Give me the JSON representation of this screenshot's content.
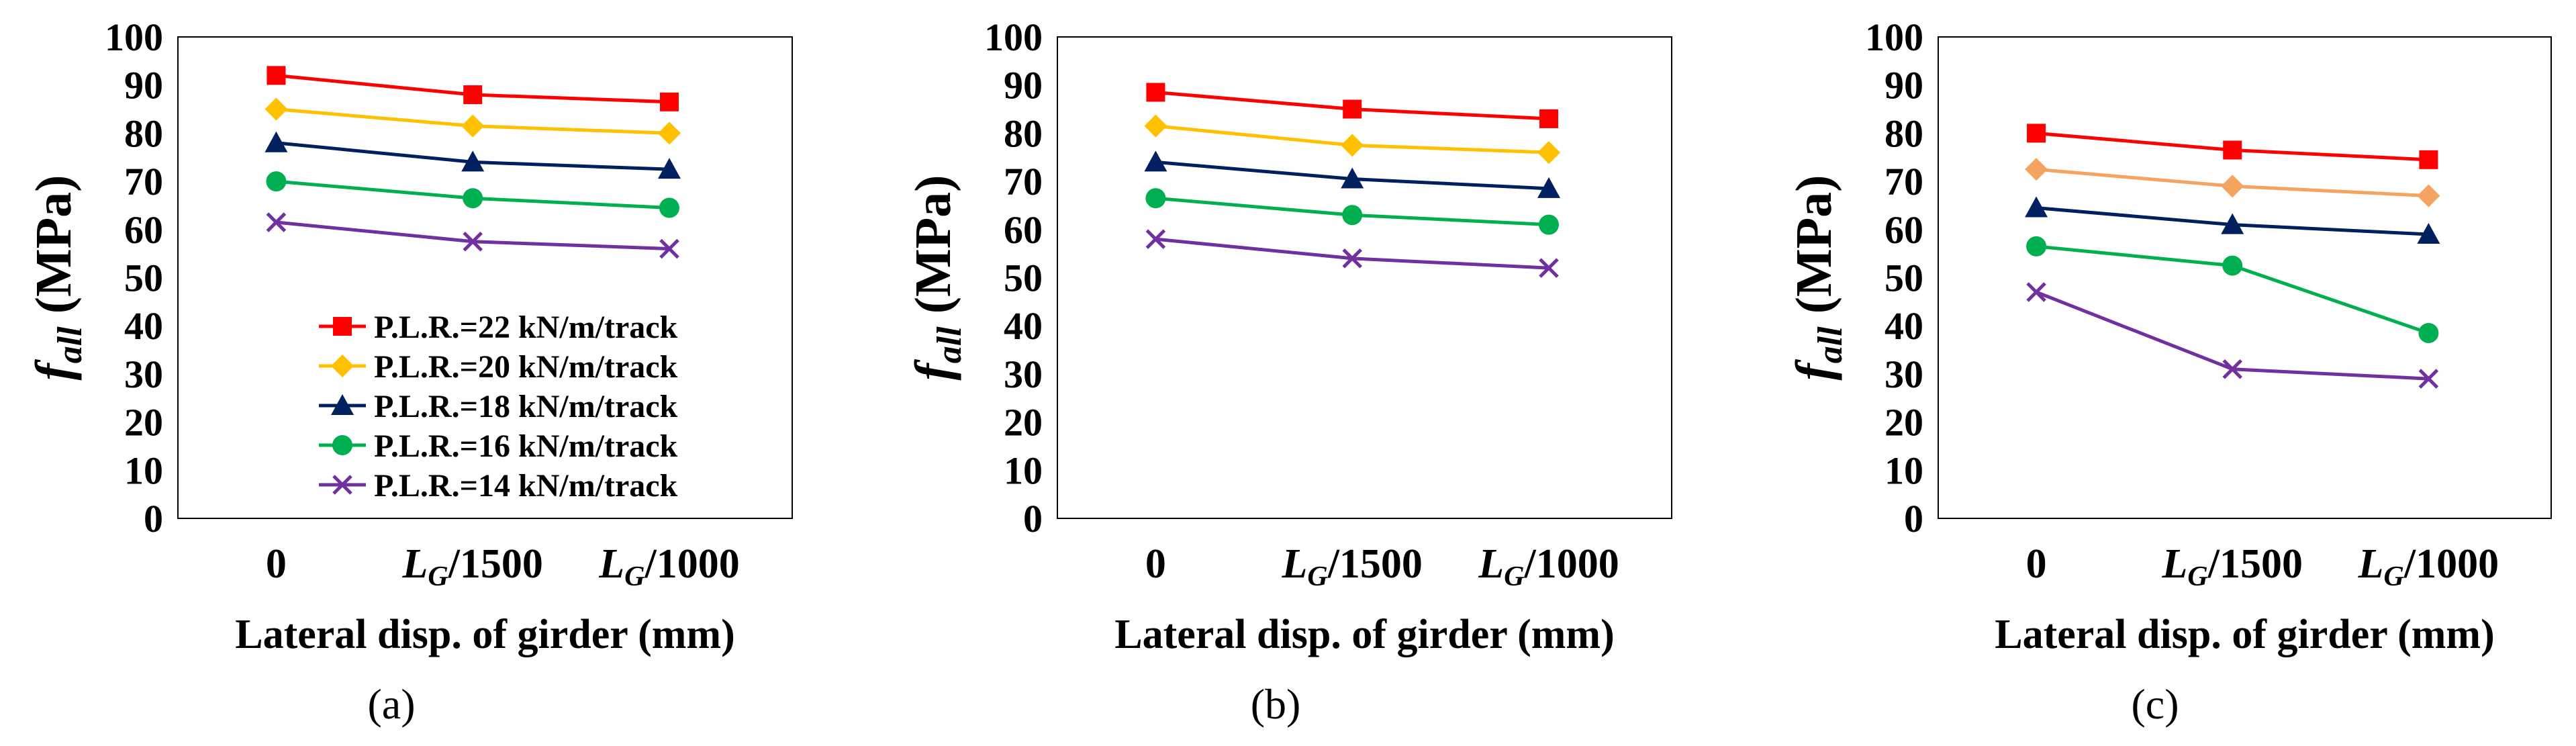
{
  "chart_data": [
    {
      "type": "line",
      "panel_label": "(a)",
      "categories": [
        "0",
        "LG/1500",
        "LG/1000"
      ],
      "ylabel_main": "f",
      "ylabel_sub": "all",
      "ylabel_unit": "(MPa)",
      "xlabel": "Lateral disp. of girder (mm)",
      "ylim": [
        0,
        100
      ],
      "yticks": [
        0,
        10,
        20,
        30,
        40,
        50,
        60,
        70,
        80,
        90,
        100
      ],
      "legend": true,
      "series": [
        {
          "name": "P.L.R.=22 kN/m/track",
          "values": [
            92,
            88,
            86.5
          ]
        },
        {
          "name": "P.L.R.=20 kN/m/track",
          "values": [
            85,
            81.5,
            80
          ]
        },
        {
          "name": "P.L.R.=18 kN/m/track",
          "values": [
            78,
            74,
            72.5
          ]
        },
        {
          "name": "P.L.R.=16 kN/m/track",
          "values": [
            70,
            66.5,
            64.5
          ]
        },
        {
          "name": "P.L.R.=14 kN/m/track",
          "values": [
            61.5,
            57.5,
            56
          ]
        }
      ]
    },
    {
      "type": "line",
      "panel_label": "(b)",
      "categories": [
        "0",
        "LG/1500",
        "LG/1000"
      ],
      "ylabel_main": "f",
      "ylabel_sub": "all",
      "ylabel_unit": "(MPa)",
      "xlabel": "Lateral disp. of girder (mm)",
      "ylim": [
        0,
        100
      ],
      "yticks": [
        0,
        10,
        20,
        30,
        40,
        50,
        60,
        70,
        80,
        90,
        100
      ],
      "legend": false,
      "series": [
        {
          "name": "P.L.R.=22 kN/m/track",
          "values": [
            88.5,
            85,
            83
          ]
        },
        {
          "name": "P.L.R.=20 kN/m/track",
          "values": [
            81.5,
            77.5,
            76
          ]
        },
        {
          "name": "P.L.R.=18 kN/m/track",
          "values": [
            74,
            70.5,
            68.5
          ]
        },
        {
          "name": "P.L.R.=16 kN/m/track",
          "values": [
            66.5,
            63,
            61
          ]
        },
        {
          "name": "P.L.R.=14 kN/m/track",
          "values": [
            58,
            54,
            52
          ]
        }
      ]
    },
    {
      "type": "line",
      "panel_label": "(c)",
      "categories": [
        "0",
        "LG/1500",
        "LG/1000"
      ],
      "ylabel_main": "f",
      "ylabel_sub": "all",
      "ylabel_unit": "(MPa)",
      "xlabel": "Lateral disp. of girder (mm)",
      "ylim": [
        0,
        100
      ],
      "yticks": [
        0,
        10,
        20,
        30,
        40,
        50,
        60,
        70,
        80,
        90,
        100
      ],
      "legend": false,
      "series": [
        {
          "name": "P.L.R.=22 kN/m/track",
          "values": [
            80,
            76.5,
            74.5
          ]
        },
        {
          "name": "P.L.R.=20 kN/m/track",
          "values": [
            72.5,
            69,
            67
          ]
        },
        {
          "name": "P.L.R.=18 kN/m/track",
          "values": [
            64.5,
            61,
            59
          ]
        },
        {
          "name": "P.L.R.=16 kN/m/track",
          "values": [
            56.5,
            52.5,
            38.5
          ]
        },
        {
          "name": "P.L.R.=14 kN/m/track",
          "values": [
            47,
            31,
            29
          ]
        }
      ]
    }
  ],
  "series_style": [
    {
      "color": "#ff0000",
      "marker": "square"
    },
    {
      "color": "#ffc000",
      "marker": "diamond"
    },
    {
      "color": "#002060",
      "marker": "triangle"
    },
    {
      "color": "#00b050",
      "marker": "circle"
    },
    {
      "color": "#7030a0",
      "marker": "cross"
    }
  ],
  "panel_c_color_20": "#f4a460"
}
